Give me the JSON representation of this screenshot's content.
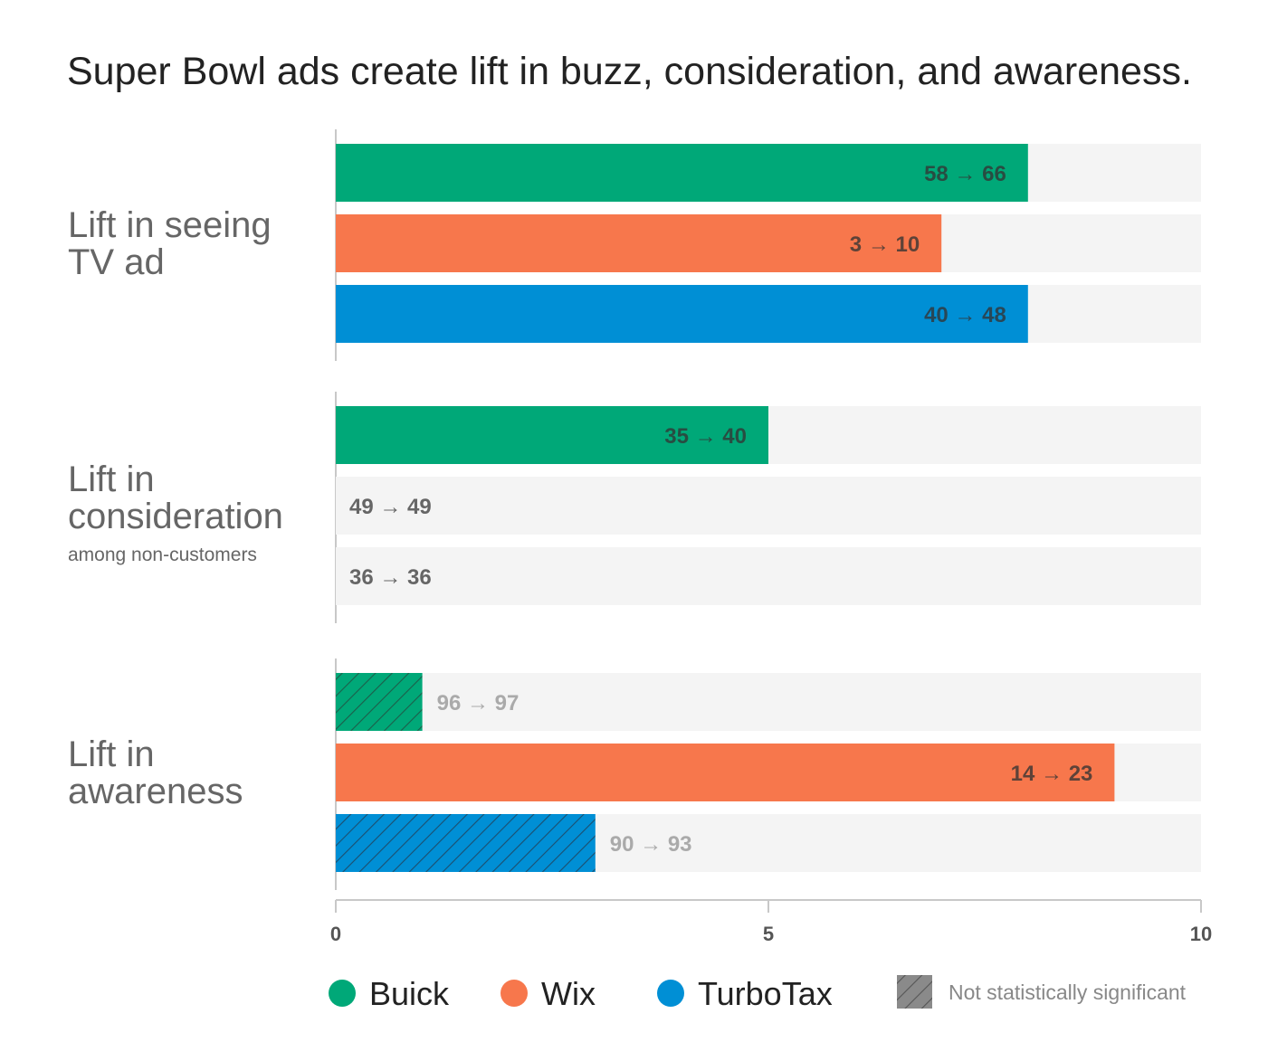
{
  "chart_data": {
    "type": "bar",
    "orientation": "horizontal",
    "title": "Super Bowl ads create lift in buzz, consideration, and awareness.",
    "xlim": [
      0,
      10
    ],
    "x_ticks": [
      "0",
      "5",
      "10"
    ],
    "arrow_glyph": "→",
    "colors": {
      "Buick": "#00a878",
      "Wix": "#f7774c",
      "TurboTax": "#008fd5",
      "track": "#f4f4f4",
      "axis": "#c8c8c8",
      "hatch": "#888888",
      "dark_label": "#333333",
      "muted_label": "#666666",
      "faint_label": "#aaaaaa"
    },
    "groups": [
      {
        "label_lines": [
          "Lift in seeing",
          "TV ad"
        ],
        "sublabel": "",
        "bars": [
          {
            "series": "Buick",
            "value": 8,
            "before": "58",
            "after": "66",
            "significant": true
          },
          {
            "series": "Wix",
            "value": 7,
            "before": "3",
            "after": "10",
            "significant": true
          },
          {
            "series": "TurboTax",
            "value": 8,
            "before": "40",
            "after": "48",
            "significant": true
          }
        ]
      },
      {
        "label_lines": [
          "Lift in",
          "consideration"
        ],
        "sublabel": "among non-customers",
        "bars": [
          {
            "series": "Buick",
            "value": 5,
            "before": "35",
            "after": "40",
            "significant": true
          },
          {
            "series": "Wix",
            "value": 0,
            "before": "49",
            "after": "49",
            "significant": true
          },
          {
            "series": "TurboTax",
            "value": 0,
            "before": "36",
            "after": "36",
            "significant": true
          }
        ]
      },
      {
        "label_lines": [
          "Lift in",
          "awareness"
        ],
        "sublabel": "",
        "bars": [
          {
            "series": "Buick",
            "value": 1,
            "before": "96",
            "after": "97",
            "significant": false
          },
          {
            "series": "Wix",
            "value": 9,
            "before": "14",
            "after": "23",
            "significant": true
          },
          {
            "series": "TurboTax",
            "value": 3,
            "before": "90",
            "after": "93",
            "significant": false
          }
        ]
      }
    ],
    "legend": {
      "position": "bottom",
      "series": [
        "Buick",
        "Wix",
        "TurboTax"
      ],
      "hatch_label": "Not statistically significant"
    }
  }
}
